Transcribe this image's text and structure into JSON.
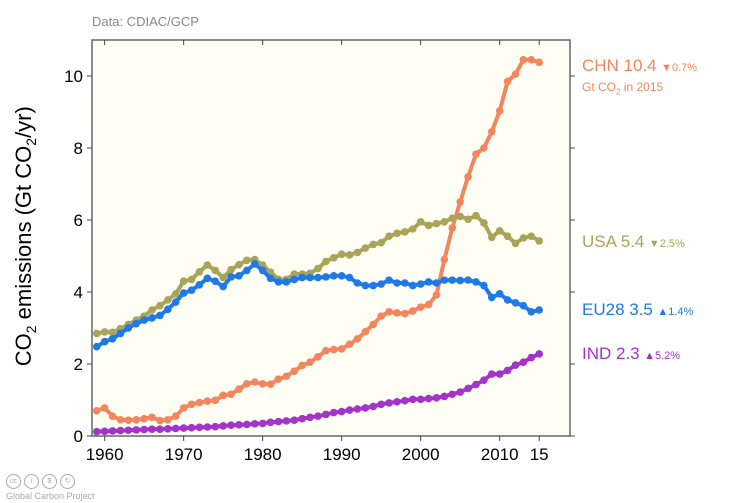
{
  "chart_data": {
    "type": "line",
    "title": "",
    "source": "Data: CDIAC/GCP",
    "xlabel": "",
    "ylabel": "CO2 emissions (Gt CO2/yr)",
    "xlim": [
      1958.2,
      1979.0
    ],
    "ylim": [
      0,
      11
    ],
    "x_ticks": [
      1960,
      1970,
      1980,
      1990,
      2000,
      2010,
      2015
    ],
    "x_tick_labels": [
      "1960",
      "1970",
      "1980",
      "1990",
      "2000",
      "2010",
      "15"
    ],
    "y_ticks": [
      0,
      2,
      4,
      6,
      8,
      10
    ],
    "y_tick_labels": [
      "0",
      "2",
      "4",
      "6",
      "8",
      "10"
    ],
    "x": [
      1959,
      1960,
      1961,
      1962,
      1963,
      1964,
      1965,
      1966,
      1967,
      1968,
      1969,
      1970,
      1971,
      1972,
      1973,
      1974,
      1975,
      1976,
      1977,
      1978,
      1979,
      1980,
      1981,
      1982,
      1983,
      1984,
      1985,
      1986,
      1987,
      1988,
      1989,
      1990,
      1991,
      1992,
      1993,
      1994,
      1995,
      1996,
      1997,
      1998,
      1999,
      2000,
      2001,
      2002,
      2003,
      2004,
      2005,
      2006,
      2007,
      2008,
      2009,
      2010,
      2011,
      2012,
      2013,
      2014,
      2015
    ],
    "series": [
      {
        "name": "CHN",
        "color": "#f4865e",
        "label_value": "10.4",
        "change": "0.7%",
        "direction": "down",
        "note": "Gt CO2 in 2015",
        "values": [
          0.7,
          0.78,
          0.55,
          0.45,
          0.44,
          0.45,
          0.48,
          0.52,
          0.43,
          0.45,
          0.55,
          0.78,
          0.88,
          0.93,
          0.97,
          0.99,
          1.13,
          1.16,
          1.3,
          1.45,
          1.5,
          1.45,
          1.44,
          1.58,
          1.66,
          1.8,
          1.96,
          2.05,
          2.2,
          2.37,
          2.4,
          2.42,
          2.55,
          2.7,
          2.9,
          3.1,
          3.33,
          3.45,
          3.42,
          3.4,
          3.47,
          3.58,
          3.65,
          3.92,
          4.9,
          5.78,
          6.5,
          7.2,
          7.83,
          8.0,
          8.45,
          9.03,
          9.85,
          10.05,
          10.45,
          10.45,
          10.38
        ]
      },
      {
        "name": "USA",
        "color": "#aaa35a",
        "label_value": "5.4",
        "change": "2.5%",
        "direction": "down",
        "values": [
          2.85,
          2.89,
          2.88,
          2.98,
          3.1,
          3.22,
          3.33,
          3.5,
          3.62,
          3.78,
          3.95,
          4.3,
          4.35,
          4.56,
          4.75,
          4.6,
          4.4,
          4.62,
          4.76,
          4.88,
          4.9,
          4.75,
          4.55,
          4.35,
          4.35,
          4.5,
          4.5,
          4.52,
          4.65,
          4.85,
          4.95,
          5.05,
          5.03,
          5.1,
          5.22,
          5.32,
          5.37,
          5.55,
          5.63,
          5.67,
          5.75,
          5.95,
          5.85,
          5.9,
          5.95,
          6.05,
          6.1,
          6.02,
          6.12,
          5.92,
          5.52,
          5.7,
          5.55,
          5.35,
          5.5,
          5.55,
          5.42
        ]
      },
      {
        "name": "EU28",
        "color": "#1f7ae8",
        "label_value": "3.5",
        "change": "1.4%",
        "direction": "up",
        "values": [
          2.48,
          2.62,
          2.7,
          2.85,
          3.0,
          3.12,
          3.22,
          3.28,
          3.35,
          3.52,
          3.72,
          3.97,
          4.05,
          4.2,
          4.38,
          4.3,
          4.15,
          4.42,
          4.45,
          4.6,
          4.78,
          4.6,
          4.38,
          4.28,
          4.28,
          4.35,
          4.4,
          4.4,
          4.4,
          4.42,
          4.45,
          4.45,
          4.4,
          4.25,
          4.18,
          4.18,
          4.22,
          4.33,
          4.25,
          4.25,
          4.18,
          4.22,
          4.28,
          4.25,
          4.33,
          4.33,
          4.32,
          4.33,
          4.28,
          4.18,
          3.85,
          3.95,
          3.78,
          3.7,
          3.62,
          3.45,
          3.5
        ]
      },
      {
        "name": "IND",
        "color": "#a433c9",
        "label_value": "2.3",
        "change": "5.2%",
        "direction": "up",
        "values": [
          0.12,
          0.13,
          0.14,
          0.15,
          0.16,
          0.17,
          0.18,
          0.19,
          0.19,
          0.2,
          0.21,
          0.22,
          0.23,
          0.24,
          0.25,
          0.26,
          0.28,
          0.3,
          0.31,
          0.32,
          0.34,
          0.35,
          0.38,
          0.4,
          0.42,
          0.44,
          0.48,
          0.52,
          0.55,
          0.6,
          0.65,
          0.68,
          0.72,
          0.75,
          0.78,
          0.82,
          0.88,
          0.92,
          0.95,
          0.98,
          1.02,
          1.02,
          1.04,
          1.06,
          1.1,
          1.16,
          1.22,
          1.32,
          1.43,
          1.55,
          1.72,
          1.72,
          1.82,
          1.97,
          2.05,
          2.18,
          2.28
        ]
      }
    ],
    "grid": false,
    "legend": "right (direct labels)"
  },
  "footer": {
    "organization": "Global Carbon Project",
    "license_icons": [
      "cc",
      "by",
      "nc",
      "sa"
    ]
  }
}
